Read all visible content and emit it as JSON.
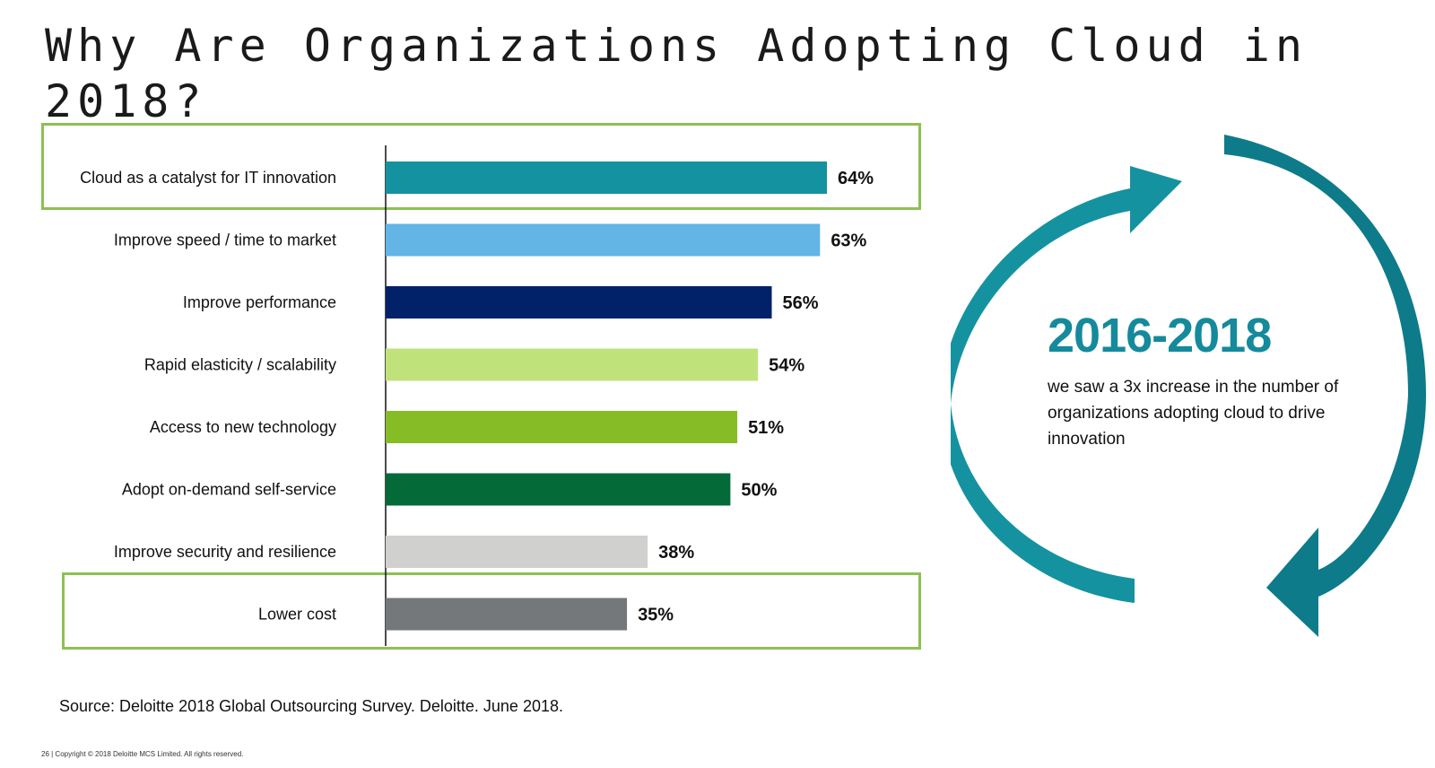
{
  "slide": {
    "title": "Why Are Organizations Adopting Cloud in 2018?",
    "source": "Source: Deloitte 2018 Global Outsourcing  Survey. Deloitte. June 2018.",
    "copyright": "26 | Copyright © 2018 Deloitte MCS Limited. All rights reserved."
  },
  "callout": {
    "period": "2016-2018",
    "text": "we saw a 3x increase in the number of organizations adopting cloud to drive innovation"
  },
  "chart_data": {
    "type": "bar",
    "orientation": "horizontal",
    "title": "",
    "xlabel": "",
    "ylabel": "",
    "xlim": [
      0,
      64
    ],
    "grid": false,
    "categories": [
      "Cloud as a catalyst for IT innovation",
      "Improve speed / time to market",
      "Improve performance",
      "Rapid elasticity / scalability",
      "Access to new technology",
      "Adopt on-demand self-service",
      "Improve security and resilience",
      "Lower cost"
    ],
    "values": [
      64,
      63,
      56,
      54,
      51,
      50,
      38,
      35
    ],
    "value_labels": [
      "64%",
      "63%",
      "56%",
      "54%",
      "51%",
      "50%",
      "38%",
      "35%"
    ],
    "colors": [
      "#1592a0",
      "#62b5e5",
      "#012169",
      "#bfe37a",
      "#86bc25",
      "#046a38",
      "#d0d0ce",
      "#75787b"
    ],
    "highlighted": [
      "Cloud as a catalyst for IT innovation",
      "Lower cost"
    ],
    "highlight_color": "#8cc152"
  },
  "graphic": {
    "arrow_colors": [
      "#1592a0",
      "#0d7b89"
    ]
  }
}
